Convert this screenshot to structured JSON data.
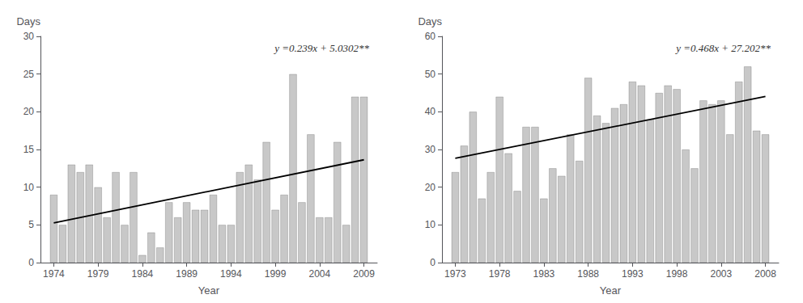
{
  "chart_data": [
    {
      "type": "bar",
      "xlabel": "Year",
      "ylabel": "Days",
      "annotations": [
        "y =0.239x + 5.0302**"
      ],
      "series": [
        {
          "type": "bar",
          "color": "#c8c8c8",
          "x": [
            1974,
            1975,
            1976,
            1977,
            1978,
            1979,
            1980,
            1981,
            1982,
            1983,
            1984,
            1985,
            1986,
            1987,
            1988,
            1989,
            1990,
            1991,
            1992,
            1993,
            1994,
            1995,
            1996,
            1997,
            1998,
            1999,
            2000,
            2001,
            2002,
            2003,
            2004,
            2005,
            2006,
            2007,
            2008,
            2009
          ],
          "values": [
            9,
            5,
            13,
            12,
            13,
            10,
            6,
            12,
            5,
            12,
            1,
            4,
            2,
            8,
            6,
            8,
            7,
            7,
            9,
            5,
            5,
            12,
            13,
            11,
            16,
            7,
            9,
            25,
            8,
            17,
            6,
            6,
            16,
            5,
            22,
            22
          ]
        },
        {
          "type": "line",
          "color": "#000000",
          "x": [
            1974,
            2009
          ],
          "values": [
            5.2692,
            13.6342
          ]
        }
      ],
      "xlim": [
        1972.5,
        2010.5
      ],
      "xticks": [
        1974,
        1979,
        1984,
        1989,
        1994,
        1999,
        2004,
        2009
      ],
      "ylim": [
        0,
        30
      ],
      "yticks": [
        0,
        5,
        10,
        15,
        20,
        25,
        30
      ],
      "grid": false
    },
    {
      "type": "bar",
      "xlabel": "Year",
      "ylabel": "Days",
      "annotations": [
        "y =0.468x + 27.202**"
      ],
      "series": [
        {
          "type": "bar",
          "color": "#c8c8c8",
          "x": [
            1973,
            1974,
            1975,
            1976,
            1977,
            1978,
            1979,
            1980,
            1981,
            1982,
            1983,
            1984,
            1985,
            1986,
            1987,
            1988,
            1989,
            1990,
            1991,
            1992,
            1993,
            1994,
            1995,
            1996,
            1997,
            1998,
            1999,
            2000,
            2001,
            2002,
            2003,
            2004,
            2005,
            2006,
            2007,
            2008
          ],
          "values": [
            24,
            31,
            40,
            17,
            24,
            44,
            29,
            19,
            36,
            36,
            17,
            25,
            23,
            34,
            27,
            49,
            39,
            37,
            41,
            42,
            48,
            47,
            38,
            45,
            47,
            46,
            30,
            25,
            43,
            42,
            43,
            34,
            48,
            52,
            35,
            34
          ]
        },
        {
          "type": "line",
          "color": "#000000",
          "x": [
            1973,
            2008
          ],
          "values": [
            27.67,
            44.05
          ]
        }
      ],
      "xlim": [
        1971.5,
        2009.5
      ],
      "xticks": [
        1973,
        1978,
        1983,
        1988,
        1993,
        1998,
        2003,
        2008
      ],
      "ylim": [
        0,
        60
      ],
      "yticks": [
        0,
        10,
        20,
        30,
        40,
        50,
        60
      ],
      "grid": false
    }
  ]
}
